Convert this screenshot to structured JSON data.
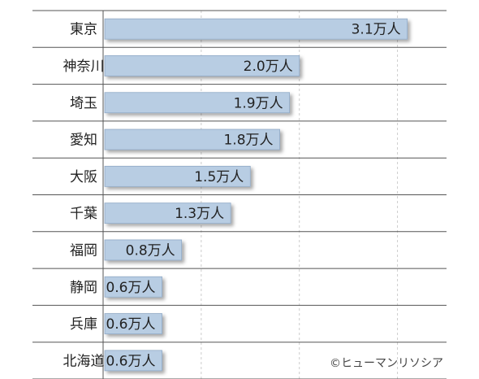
{
  "chart_data": {
    "type": "bar",
    "orientation": "horizontal",
    "categories": [
      "東京",
      "神奈川",
      "埼玉",
      "愛知",
      "大阪",
      "千葉",
      "福岡",
      "静岡",
      "兵庫",
      "北海道"
    ],
    "values": [
      3.1,
      2.0,
      1.9,
      1.8,
      1.5,
      1.3,
      0.8,
      0.6,
      0.6,
      0.6
    ],
    "data_labels": [
      "3.1万人",
      "2.0万人",
      "1.9万人",
      "1.8万人",
      "1.5万人",
      "1.3万人",
      "0.8万人",
      "0.6万人",
      "0.6万人",
      "0.6万人"
    ],
    "unit": "万人",
    "xlim": [
      0,
      3.5
    ],
    "grid": "vertical dashed",
    "bar_color": "#b8cde3",
    "bar_border_color": "#8fa9c6",
    "text_color": "#222222"
  },
  "credit": "©ヒューマンリソシア"
}
